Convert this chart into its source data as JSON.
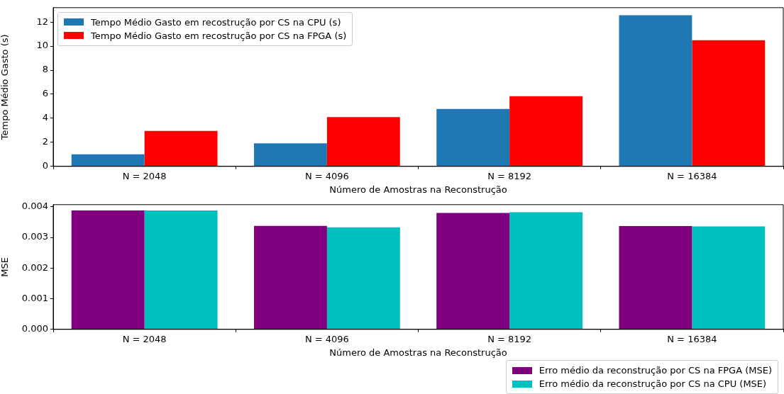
{
  "chart_data": [
    {
      "type": "bar",
      "categories": [
        "N = 2048",
        "N = 4096",
        "N = 8192",
        "N = 16384"
      ],
      "xlabel": "Número de Amostras na Reconstrução",
      "ylabel": "Tempo Médio Gasto (s)",
      "ylim": [
        0,
        13.2
      ],
      "yticks": [
        0,
        2,
        4,
        6,
        8,
        10,
        12
      ],
      "grid": false,
      "legend": "top left",
      "series": [
        {
          "name": "Tempo Médio Gasto em recostrução por CS na CPU (s)",
          "color": "#1f77b4",
          "values": [
            1.0,
            1.92,
            4.78,
            12.57
          ]
        },
        {
          "name": "Tempo Médio Gasto em recostrução por CS na FPGA (s)",
          "color": "#ff0000",
          "values": [
            2.95,
            4.1,
            5.83,
            10.49
          ]
        }
      ]
    },
    {
      "type": "bar",
      "categories": [
        "N = 2048",
        "N = 4096",
        "N = 8192",
        "N = 16384"
      ],
      "xlabel": "Número de Amostras na Reconstrução",
      "ylabel": "MSE",
      "ylim": [
        0,
        0.00407
      ],
      "yticks": [
        {
          "value": 0,
          "label": "0.000"
        },
        {
          "value": 0.001,
          "label": "0.001"
        },
        {
          "value": 0.002,
          "label": "0.002"
        },
        {
          "value": 0.003,
          "label": "0.003"
        },
        {
          "value": 0.004,
          "label": "0.004"
        }
      ],
      "grid": false,
      "legend": "bottom",
      "series": [
        {
          "name": "Erro médio da reconstrução por CS na FPGA (MSE)",
          "color": "#800080",
          "values": [
            0.00388,
            0.00338,
            0.0038,
            0.00337
          ]
        },
        {
          "name": "Erro médio da reconstrução por CS na CPU (MSE)",
          "color": "#00bfbf",
          "values": [
            0.00388,
            0.00333,
            0.00382,
            0.00336
          ]
        }
      ]
    }
  ]
}
